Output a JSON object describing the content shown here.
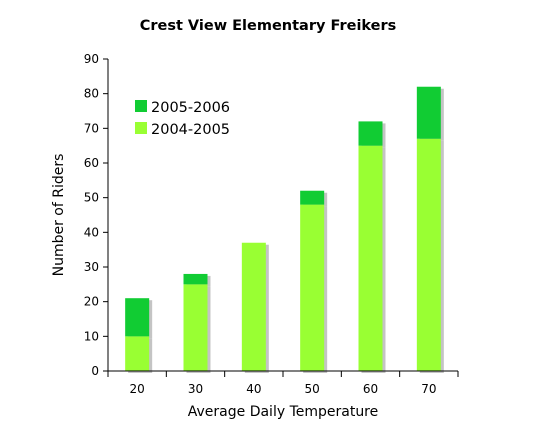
{
  "chart_data": {
    "type": "bar",
    "stacked": true,
    "title": "Crest View Elementary Freikers",
    "xlabel": "Average Daily Temperature",
    "ylabel": "Number of Riders",
    "categories": [
      "20",
      "30",
      "40",
      "50",
      "60",
      "70"
    ],
    "ylim": [
      0,
      90
    ],
    "yticks": [
      0,
      10,
      20,
      30,
      40,
      50,
      60,
      70,
      80,
      90
    ],
    "grid": false,
    "legend_position": "top-left",
    "series": [
      {
        "name": "2004-2005",
        "values": [
          10,
          25,
          37,
          48,
          65,
          67
        ],
        "color": "#99ff33"
      },
      {
        "name": "2005-2006",
        "values": [
          11,
          3,
          0,
          4,
          7,
          15
        ],
        "color": "#11cc33"
      }
    ],
    "legend_order": [
      "2005-2006",
      "2004-2005"
    ]
  }
}
